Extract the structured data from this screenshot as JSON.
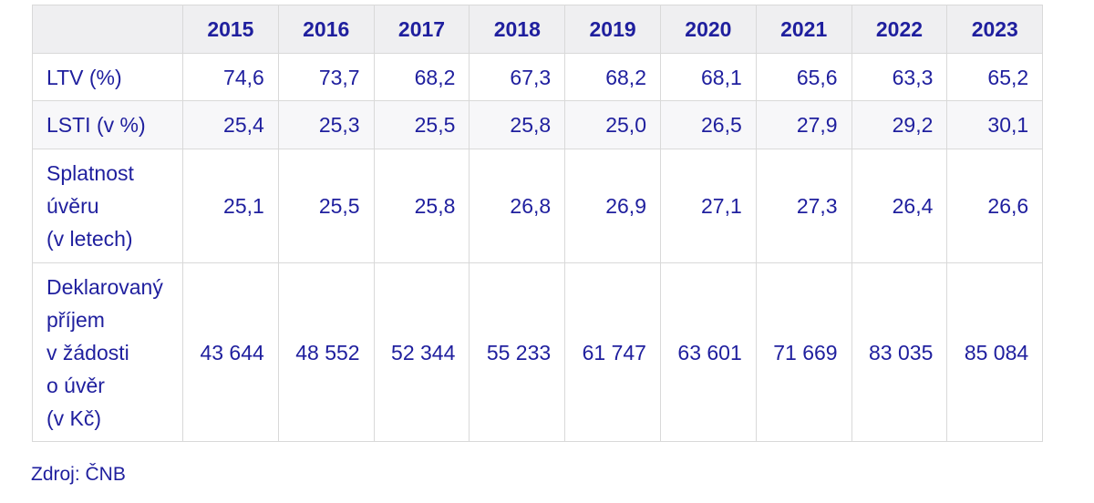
{
  "table": {
    "corner": "",
    "years": [
      "2015",
      "2016",
      "2017",
      "2018",
      "2019",
      "2020",
      "2021",
      "2022",
      "2023"
    ],
    "rows": [
      {
        "label_lines": [
          "LTV (%)"
        ],
        "values": [
          "74,6",
          "73,7",
          "68,2",
          "67,3",
          "68,2",
          "68,1",
          "65,6",
          "63,3",
          "65,2"
        ]
      },
      {
        "label_lines": [
          "LSTI (v %)"
        ],
        "values": [
          "25,4",
          "25,3",
          "25,5",
          "25,8",
          "25,0",
          "26,5",
          "27,9",
          "29,2",
          "30,1"
        ]
      },
      {
        "label_lines": [
          "Splatnost",
          "úvěru",
          "(v letech)"
        ],
        "values": [
          "25,1",
          "25,5",
          "25,8",
          "26,8",
          "26,9",
          "27,1",
          "27,3",
          "26,4",
          "26,6"
        ]
      },
      {
        "label_lines": [
          "Deklarovaný",
          "příjem",
          "v žádosti",
          "o úvěr",
          "(v Kč)"
        ],
        "values": [
          "43 644",
          "48 552",
          "52 344",
          "55 233",
          "61 747",
          "63 601",
          "71 669",
          "83 035",
          "85 084"
        ]
      }
    ]
  },
  "source": "Zdroj: ČNB",
  "colors": {
    "text": "#1f1f9e",
    "header_bg": "#efeff1",
    "stripe_bg": "#f7f7f9",
    "border": "#d9d9d9"
  }
}
